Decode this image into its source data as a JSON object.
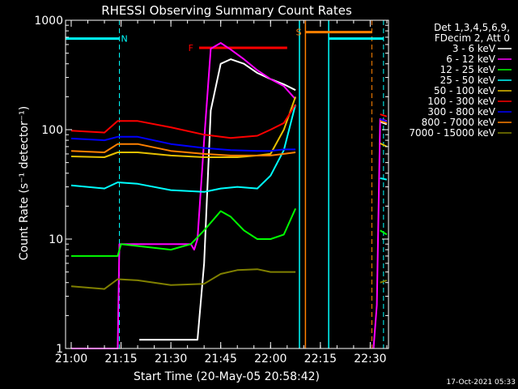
{
  "chart_data": {
    "type": "line",
    "title": "RHESSI Observing Summary Count Rates",
    "xlabel": "Start Time (20-May-05 20:58:42)",
    "ylabel": "Count Rate (s⁻¹ detector⁻¹)",
    "ylog": true,
    "xlim_minutes": [
      -1.7,
      95.5
    ],
    "ylim": [
      1,
      1000
    ],
    "x_ticks": [
      {
        "t": 0,
        "label": "21:00"
      },
      {
        "t": 15,
        "label": "21:15"
      },
      {
        "t": 30,
        "label": "21:30"
      },
      {
        "t": 45,
        "label": "21:45"
      },
      {
        "t": 60,
        "label": "22:00"
      },
      {
        "t": 75,
        "label": "22:15"
      },
      {
        "t": 90,
        "label": "22:30"
      }
    ],
    "y_ticks": [
      {
        "v": 1,
        "label": "1"
      },
      {
        "v": 10,
        "label": "10"
      },
      {
        "v": 100,
        "label": "100"
      },
      {
        "v": 1000,
        "label": "1000"
      }
    ],
    "legend_header": [
      "Det 1,3,4,5,6,9,",
      "FDecim 2, Att 0"
    ],
    "legend_placement": "top-right",
    "series": [
      {
        "name": "3 - 6 keV",
        "color": "#ffffff",
        "x": [
          -1.7,
          20,
          20.5,
          38,
          40,
          42,
          45,
          48,
          52,
          56,
          60,
          64,
          67.5,
          68.2,
          92.3,
          93,
          95
        ],
        "y": [
          null,
          null,
          1.2,
          1.2,
          6,
          150,
          400,
          440,
          400,
          330,
          290,
          260,
          230,
          null,
          null,
          118,
          112
        ]
      },
      {
        "name": "6 - 12 keV",
        "color": "#ff00ff",
        "x": [
          0,
          14,
          14.5,
          36,
          37,
          38,
          40,
          42,
          45,
          48,
          52,
          56,
          60,
          64,
          67.5,
          68.2,
          91,
          92,
          93,
          95
        ],
        "y": [
          1,
          1,
          9,
          9,
          8,
          10,
          80,
          550,
          620,
          540,
          440,
          350,
          290,
          250,
          190,
          null,
          1,
          2.5,
          125,
          120
        ]
      },
      {
        "name": "12 - 25 keV",
        "color": "#00ff00",
        "x": [
          0,
          14,
          15,
          30,
          36,
          40,
          45,
          48,
          52,
          56,
          60,
          64,
          67.5,
          68.2,
          92.3,
          93,
          95
        ],
        "y": [
          7,
          7,
          9,
          8,
          9,
          12,
          18,
          16,
          12,
          10,
          10,
          11,
          19,
          null,
          null,
          12,
          11
        ]
      },
      {
        "name": "25 - 50 keV",
        "color": "#00ffff",
        "x": [
          0,
          10,
          14,
          20,
          30,
          40,
          45,
          50,
          56,
          60,
          64,
          67.5,
          68.2,
          92.3,
          93,
          95
        ],
        "y": [
          31,
          29,
          33,
          32,
          28,
          27,
          29,
          30,
          29,
          38,
          65,
          170,
          null,
          null,
          36,
          35
        ]
      },
      {
        "name": "50 - 100 keV",
        "color": "#e6c000",
        "x": [
          0,
          10,
          14,
          20,
          30,
          40,
          50,
          56,
          60,
          64,
          67.5,
          68.2,
          92.3,
          93,
          95
        ],
        "y": [
          57,
          56,
          62,
          62,
          58,
          56,
          56,
          58,
          60,
          100,
          200,
          null,
          null,
          75,
          70
        ]
      },
      {
        "name": "100 - 300 keV",
        "color": "#ff0000",
        "x": [
          0,
          10,
          14,
          20,
          30,
          40,
          48,
          56,
          60,
          64,
          67.5,
          68.2,
          92.3,
          93,
          95
        ],
        "y": [
          98,
          94,
          120,
          120,
          105,
          90,
          84,
          88,
          100,
          115,
          170,
          null,
          null,
          138,
          132
        ]
      },
      {
        "name": "300 - 800 keV",
        "color": "#0000ff",
        "x": [
          0,
          10,
          14,
          20,
          30,
          40,
          48,
          56,
          60,
          64,
          67.5,
          68.2,
          92.3,
          93,
          95
        ],
        "y": [
          83,
          80,
          86,
          86,
          74,
          68,
          65,
          64,
          64,
          66,
          66,
          null,
          null,
          125,
          118
        ]
      },
      {
        "name": "800 - 7000 keV",
        "color": "#ff8000",
        "x": [
          0,
          10,
          14,
          20,
          30,
          40,
          48,
          56,
          60,
          64,
          67.5,
          68.2,
          92.3,
          93,
          95
        ],
        "y": [
          64,
          62,
          74,
          74,
          64,
          60,
          58,
          58,
          58,
          60,
          62,
          null,
          null,
          120,
          115
        ]
      },
      {
        "name": "7000 - 15000 keV",
        "color": "#808000",
        "x": [
          0,
          10,
          14,
          20,
          30,
          40,
          45,
          50,
          56,
          60,
          64,
          67.5,
          68.2,
          92.3,
          93,
          95
        ],
        "y": [
          3.7,
          3.5,
          4.3,
          4.2,
          3.8,
          3.9,
          4.8,
          5.2,
          5.3,
          5.0,
          5.0,
          5.0,
          null,
          null,
          4.0,
          4.2
        ]
      }
    ],
    "annotations": [
      {
        "label": "N",
        "color": "#00ffff",
        "bar_from": -1.7,
        "bar_to": 14.5,
        "bar_level": 680,
        "label_at": 16,
        "dashed_at": 14.5
      },
      {
        "label": "F",
        "color": "#ff0000",
        "bar_from": 38.5,
        "bar_to": 65,
        "bar_level": 560,
        "label_at": 36
      },
      {
        "label": "S",
        "color": "#ff8000",
        "bar_from": 70.5,
        "bar_to": 90.5,
        "bar_level": 780,
        "label_at": 68.5,
        "dashed_at": 90.5
      },
      {
        "label": "",
        "color": "#00ffff",
        "bar_from": 77.5,
        "bar_to": 94,
        "bar_level": 680,
        "dashed_at": 94
      }
    ],
    "vertical_lines": [
      {
        "t": 68.7,
        "color": "#00ffff"
      },
      {
        "t": 70.5,
        "color": "#ff8000"
      },
      {
        "t": 77.5,
        "color": "#00ffff"
      }
    ]
  },
  "footer_date": "17-Oct-2021 05:33"
}
